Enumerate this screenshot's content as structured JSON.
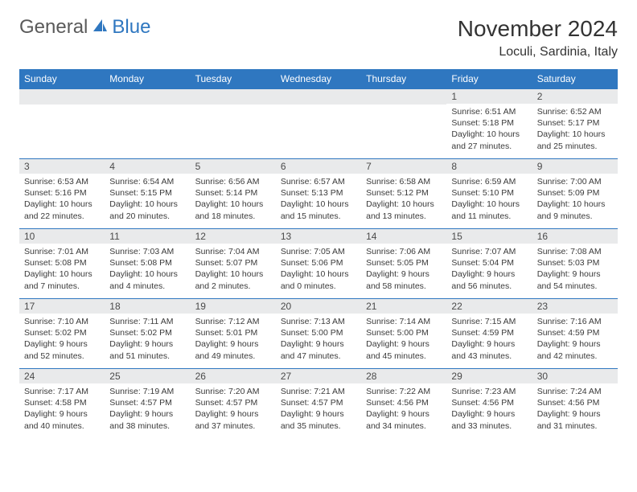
{
  "logo": {
    "general": "General",
    "blue": "Blue"
  },
  "title": "November 2024",
  "location": "Loculi, Sardinia, Italy",
  "colors": {
    "header_bg": "#2f77c0",
    "header_text": "#ffffff",
    "daynum_bg": "#e9eaeb",
    "border": "#2f77c0",
    "body_text": "#3a3a3a"
  },
  "weekdays": [
    "Sunday",
    "Monday",
    "Tuesday",
    "Wednesday",
    "Thursday",
    "Friday",
    "Saturday"
  ],
  "weeks": [
    [
      {
        "n": "",
        "lines": []
      },
      {
        "n": "",
        "lines": []
      },
      {
        "n": "",
        "lines": []
      },
      {
        "n": "",
        "lines": []
      },
      {
        "n": "",
        "lines": []
      },
      {
        "n": "1",
        "lines": [
          "Sunrise: 6:51 AM",
          "Sunset: 5:18 PM",
          "Daylight: 10 hours and 27 minutes."
        ]
      },
      {
        "n": "2",
        "lines": [
          "Sunrise: 6:52 AM",
          "Sunset: 5:17 PM",
          "Daylight: 10 hours and 25 minutes."
        ]
      }
    ],
    [
      {
        "n": "3",
        "lines": [
          "Sunrise: 6:53 AM",
          "Sunset: 5:16 PM",
          "Daylight: 10 hours and 22 minutes."
        ]
      },
      {
        "n": "4",
        "lines": [
          "Sunrise: 6:54 AM",
          "Sunset: 5:15 PM",
          "Daylight: 10 hours and 20 minutes."
        ]
      },
      {
        "n": "5",
        "lines": [
          "Sunrise: 6:56 AM",
          "Sunset: 5:14 PM",
          "Daylight: 10 hours and 18 minutes."
        ]
      },
      {
        "n": "6",
        "lines": [
          "Sunrise: 6:57 AM",
          "Sunset: 5:13 PM",
          "Daylight: 10 hours and 15 minutes."
        ]
      },
      {
        "n": "7",
        "lines": [
          "Sunrise: 6:58 AM",
          "Sunset: 5:12 PM",
          "Daylight: 10 hours and 13 minutes."
        ]
      },
      {
        "n": "8",
        "lines": [
          "Sunrise: 6:59 AM",
          "Sunset: 5:10 PM",
          "Daylight: 10 hours and 11 minutes."
        ]
      },
      {
        "n": "9",
        "lines": [
          "Sunrise: 7:00 AM",
          "Sunset: 5:09 PM",
          "Daylight: 10 hours and 9 minutes."
        ]
      }
    ],
    [
      {
        "n": "10",
        "lines": [
          "Sunrise: 7:01 AM",
          "Sunset: 5:08 PM",
          "Daylight: 10 hours and 7 minutes."
        ]
      },
      {
        "n": "11",
        "lines": [
          "Sunrise: 7:03 AM",
          "Sunset: 5:08 PM",
          "Daylight: 10 hours and 4 minutes."
        ]
      },
      {
        "n": "12",
        "lines": [
          "Sunrise: 7:04 AM",
          "Sunset: 5:07 PM",
          "Daylight: 10 hours and 2 minutes."
        ]
      },
      {
        "n": "13",
        "lines": [
          "Sunrise: 7:05 AM",
          "Sunset: 5:06 PM",
          "Daylight: 10 hours and 0 minutes."
        ]
      },
      {
        "n": "14",
        "lines": [
          "Sunrise: 7:06 AM",
          "Sunset: 5:05 PM",
          "Daylight: 9 hours and 58 minutes."
        ]
      },
      {
        "n": "15",
        "lines": [
          "Sunrise: 7:07 AM",
          "Sunset: 5:04 PM",
          "Daylight: 9 hours and 56 minutes."
        ]
      },
      {
        "n": "16",
        "lines": [
          "Sunrise: 7:08 AM",
          "Sunset: 5:03 PM",
          "Daylight: 9 hours and 54 minutes."
        ]
      }
    ],
    [
      {
        "n": "17",
        "lines": [
          "Sunrise: 7:10 AM",
          "Sunset: 5:02 PM",
          "Daylight: 9 hours and 52 minutes."
        ]
      },
      {
        "n": "18",
        "lines": [
          "Sunrise: 7:11 AM",
          "Sunset: 5:02 PM",
          "Daylight: 9 hours and 51 minutes."
        ]
      },
      {
        "n": "19",
        "lines": [
          "Sunrise: 7:12 AM",
          "Sunset: 5:01 PM",
          "Daylight: 9 hours and 49 minutes."
        ]
      },
      {
        "n": "20",
        "lines": [
          "Sunrise: 7:13 AM",
          "Sunset: 5:00 PM",
          "Daylight: 9 hours and 47 minutes."
        ]
      },
      {
        "n": "21",
        "lines": [
          "Sunrise: 7:14 AM",
          "Sunset: 5:00 PM",
          "Daylight: 9 hours and 45 minutes."
        ]
      },
      {
        "n": "22",
        "lines": [
          "Sunrise: 7:15 AM",
          "Sunset: 4:59 PM",
          "Daylight: 9 hours and 43 minutes."
        ]
      },
      {
        "n": "23",
        "lines": [
          "Sunrise: 7:16 AM",
          "Sunset: 4:59 PM",
          "Daylight: 9 hours and 42 minutes."
        ]
      }
    ],
    [
      {
        "n": "24",
        "lines": [
          "Sunrise: 7:17 AM",
          "Sunset: 4:58 PM",
          "Daylight: 9 hours and 40 minutes."
        ]
      },
      {
        "n": "25",
        "lines": [
          "Sunrise: 7:19 AM",
          "Sunset: 4:57 PM",
          "Daylight: 9 hours and 38 minutes."
        ]
      },
      {
        "n": "26",
        "lines": [
          "Sunrise: 7:20 AM",
          "Sunset: 4:57 PM",
          "Daylight: 9 hours and 37 minutes."
        ]
      },
      {
        "n": "27",
        "lines": [
          "Sunrise: 7:21 AM",
          "Sunset: 4:57 PM",
          "Daylight: 9 hours and 35 minutes."
        ]
      },
      {
        "n": "28",
        "lines": [
          "Sunrise: 7:22 AM",
          "Sunset: 4:56 PM",
          "Daylight: 9 hours and 34 minutes."
        ]
      },
      {
        "n": "29",
        "lines": [
          "Sunrise: 7:23 AM",
          "Sunset: 4:56 PM",
          "Daylight: 9 hours and 33 minutes."
        ]
      },
      {
        "n": "30",
        "lines": [
          "Sunrise: 7:24 AM",
          "Sunset: 4:56 PM",
          "Daylight: 9 hours and 31 minutes."
        ]
      }
    ]
  ]
}
